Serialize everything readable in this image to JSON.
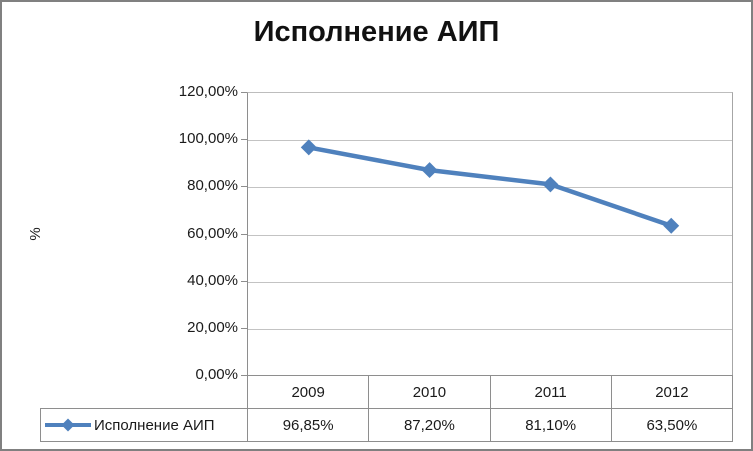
{
  "chart_data": {
    "type": "line",
    "title": "Исполнение АИП",
    "ylabel": "%",
    "xlabel": "",
    "categories": [
      "2009",
      "2010",
      "2011",
      "2012"
    ],
    "series": [
      {
        "name": "Исполнение АИП",
        "values": [
          96.85,
          87.2,
          81.1,
          63.5
        ],
        "values_formatted": [
          "96,85%",
          "87,20%",
          "81,10%",
          "63,50%"
        ],
        "color": "#4f81bd",
        "marker": "diamond"
      }
    ],
    "ylim": [
      0,
      120
    ],
    "y_tick_values": [
      120,
      100,
      80,
      60,
      40,
      20,
      0
    ],
    "y_tick_labels": [
      "120,00%",
      "100,00%",
      "80,00%",
      "60,00%",
      "40,00%",
      "20,00%",
      "0,00%"
    ],
    "grid": true,
    "legend_position": "bottom-left-data-table"
  },
  "colors": {
    "series_line": "#4f81bd",
    "gridline": "#c3c3c3",
    "axis": "#8e8e8e",
    "table_border": "#8e8e8e",
    "text": "#1a1a1a",
    "outer_border": "#808080",
    "background": "#ffffff"
  }
}
